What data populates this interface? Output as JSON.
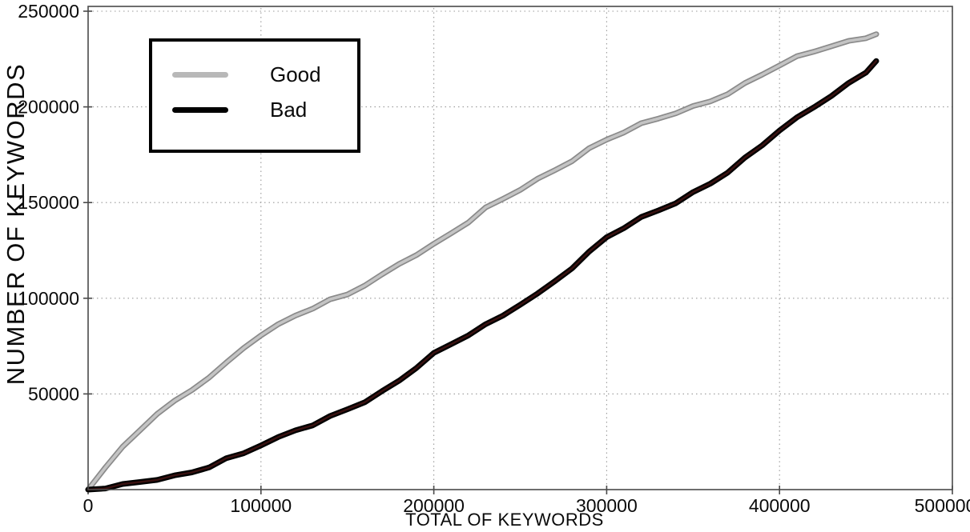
{
  "chart_data": {
    "type": "line",
    "title": "",
    "xlabel": "TOTAL OF KEYWORDS",
    "ylabel": "NUMBER OF KEYWORDS",
    "xlim": [
      0,
      500000
    ],
    "ylim": [
      0,
      250000
    ],
    "xticks": [
      0,
      100000,
      200000,
      300000,
      400000,
      500000
    ],
    "yticks": [
      50000,
      100000,
      150000,
      200000,
      250000
    ],
    "grid": "dotted",
    "grid_color": "#999999",
    "spine_color": "#4a4a4a",
    "legend_position": "upper-left",
    "series": [
      {
        "name": "Good",
        "legend_color": "#b8b8b8",
        "edge_color": "#8a8a8a",
        "core_color": "#c4c4c4",
        "points": [
          [
            0,
            0
          ],
          [
            10000,
            12000
          ],
          [
            20000,
            22000
          ],
          [
            30000,
            31000
          ],
          [
            40000,
            40000
          ],
          [
            50000,
            46000
          ],
          [
            60000,
            52000
          ],
          [
            70000,
            59000
          ],
          [
            80000,
            66000
          ],
          [
            90000,
            74000
          ],
          [
            100000,
            81000
          ],
          [
            110000,
            86000
          ],
          [
            120000,
            91000
          ],
          [
            130000,
            95000
          ],
          [
            140000,
            99000
          ],
          [
            150000,
            102000
          ],
          [
            160000,
            107000
          ],
          [
            170000,
            112000
          ],
          [
            180000,
            118000
          ],
          [
            190000,
            123000
          ],
          [
            200000,
            128000
          ],
          [
            210000,
            134000
          ],
          [
            220000,
            140000
          ],
          [
            230000,
            147000
          ],
          [
            240000,
            152000
          ],
          [
            250000,
            157000
          ],
          [
            260000,
            162000
          ],
          [
            270000,
            167000
          ],
          [
            280000,
            172000
          ],
          [
            290000,
            178000
          ],
          [
            300000,
            183000
          ],
          [
            310000,
            187000
          ],
          [
            320000,
            191000
          ],
          [
            330000,
            194000
          ],
          [
            340000,
            197000
          ],
          [
            350000,
            200000
          ],
          [
            360000,
            203000
          ],
          [
            370000,
            207000
          ],
          [
            380000,
            212000
          ],
          [
            390000,
            217000
          ],
          [
            400000,
            222000
          ],
          [
            410000,
            226000
          ],
          [
            420000,
            229000
          ],
          [
            430000,
            232000
          ],
          [
            440000,
            234000
          ],
          [
            450000,
            236000
          ],
          [
            456000,
            238000
          ]
        ]
      },
      {
        "name": "Bad",
        "legend_color": "#000000",
        "edge_color": "#000000",
        "core_color": "#3a1110",
        "points": [
          [
            0,
            0
          ],
          [
            10000,
            1000
          ],
          [
            20000,
            2500
          ],
          [
            30000,
            4000
          ],
          [
            40000,
            5500
          ],
          [
            50000,
            7000
          ],
          [
            60000,
            9000
          ],
          [
            70000,
            12000
          ],
          [
            80000,
            16000
          ],
          [
            90000,
            19000
          ],
          [
            100000,
            23500
          ],
          [
            110000,
            27000
          ],
          [
            120000,
            31000
          ],
          [
            130000,
            34000
          ],
          [
            140000,
            38000
          ],
          [
            150000,
            42000
          ],
          [
            160000,
            46000
          ],
          [
            170000,
            51000
          ],
          [
            180000,
            57000
          ],
          [
            190000,
            64000
          ],
          [
            200000,
            71000
          ],
          [
            210000,
            76000
          ],
          [
            220000,
            81000
          ],
          [
            230000,
            86000
          ],
          [
            240000,
            91000
          ],
          [
            250000,
            97000
          ],
          [
            260000,
            102000
          ],
          [
            270000,
            109000
          ],
          [
            280000,
            116000
          ],
          [
            290000,
            124000
          ],
          [
            300000,
            132000
          ],
          [
            310000,
            137000
          ],
          [
            320000,
            142000
          ],
          [
            330000,
            146000
          ],
          [
            340000,
            150000
          ],
          [
            350000,
            155000
          ],
          [
            360000,
            160000
          ],
          [
            370000,
            166000
          ],
          [
            380000,
            173000
          ],
          [
            390000,
            180000
          ],
          [
            400000,
            188000
          ],
          [
            410000,
            194000
          ],
          [
            420000,
            200000
          ],
          [
            430000,
            206000
          ],
          [
            440000,
            212000
          ],
          [
            450000,
            218000
          ],
          [
            456000,
            224000
          ]
        ]
      }
    ]
  }
}
